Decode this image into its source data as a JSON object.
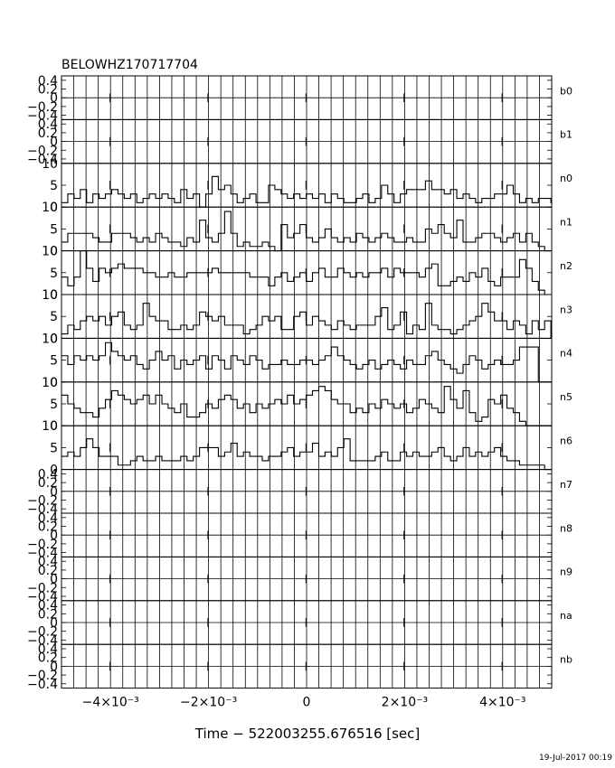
{
  "chart_data": {
    "type": "line",
    "title": "BELOWHZ170717704",
    "xlabel": "Time − 522003255.676516 [sec]",
    "ylabel": "",
    "xlim": [
      -0.005,
      0.005
    ],
    "x_ticks": [
      {
        "value": -0.004,
        "label": "−4×10⁻³"
      },
      {
        "value": -0.002,
        "label": "−2×10⁻³"
      },
      {
        "value": 0,
        "label": "0"
      },
      {
        "value": 0.002,
        "label": "2×10⁻³"
      },
      {
        "value": 0.004,
        "label": "4×10⁻³"
      }
    ],
    "bin_start": -0.005,
    "bin_width": 0.000128,
    "grid": true,
    "panels": [
      {
        "name": "b0",
        "ylim": [
          -0.5,
          0.5
        ],
        "yticks": [
          {
            "v": 0.4,
            "l": "0.4"
          },
          {
            "v": 0.2,
            "l": "0.2"
          },
          {
            "v": 0,
            "l": "0"
          },
          {
            "v": -0.2,
            "l": "−0.2"
          },
          {
            "v": -0.4,
            "l": "−0.4"
          }
        ],
        "values": []
      },
      {
        "name": "b1",
        "ylim": [
          -0.5,
          0.5
        ],
        "yticks": [
          {
            "v": 0.4,
            "l": "0.4"
          },
          {
            "v": 0.2,
            "l": "0.2"
          },
          {
            "v": 0,
            "l": "0"
          },
          {
            "v": -0.2,
            "l": "−0.2"
          },
          {
            "v": -0.4,
            "l": "−0.4"
          }
        ],
        "values": []
      },
      {
        "name": "n0",
        "ylim": [
          0,
          10
        ],
        "yticks": [
          {
            "v": 10,
            "l": "10"
          },
          {
            "v": 5,
            "l": "5"
          },
          {
            "v": 0,
            "l": "0"
          }
        ],
        "values": [
          1,
          3,
          2,
          4,
          1,
          3,
          2,
          3,
          4,
          3,
          2,
          3,
          1,
          2,
          3,
          2,
          3,
          2,
          1,
          4,
          2,
          3,
          0,
          3,
          7,
          4,
          5,
          3,
          1,
          2,
          3,
          1,
          1,
          5,
          4,
          3,
          2,
          3,
          2,
          3,
          2,
          3,
          1,
          3,
          2,
          1,
          1,
          2,
          3,
          1,
          2,
          5,
          3,
          1,
          3,
          4,
          4,
          4,
          6,
          4,
          4,
          3,
          4,
          2,
          3,
          2,
          1,
          2,
          2,
          3,
          3,
          5,
          3,
          1,
          2,
          1,
          2,
          2,
          1
        ]
      },
      {
        "name": "n1",
        "ylim": [
          0,
          10
        ],
        "yticks": [
          {
            "v": 10,
            "l": "10"
          },
          {
            "v": 5,
            "l": "5"
          },
          {
            "v": 0,
            "l": "0"
          }
        ],
        "values": [
          2,
          4,
          4,
          4,
          4,
          3,
          2,
          2,
          4,
          4,
          4,
          3,
          2,
          3,
          2,
          4,
          3,
          2,
          2,
          1,
          3,
          2,
          7,
          3,
          2,
          4,
          9,
          4,
          1,
          2,
          1,
          1,
          2,
          1,
          0,
          6,
          3,
          4,
          6,
          3,
          2,
          3,
          5,
          3,
          2,
          3,
          2,
          4,
          3,
          2,
          3,
          4,
          3,
          2,
          2,
          3,
          2,
          2,
          5,
          4,
          6,
          4,
          3,
          7,
          2,
          2,
          3,
          4,
          4,
          3,
          2,
          3,
          4,
          2,
          4,
          2,
          1,
          0,
          0
        ]
      },
      {
        "name": "n2",
        "ylim": [
          0,
          10
        ],
        "yticks": [
          {
            "v": 10,
            "l": "10"
          },
          {
            "v": 5,
            "l": "5"
          },
          {
            "v": 0,
            "l": "0"
          }
        ],
        "values": [
          4,
          2,
          4,
          10,
          6,
          3,
          6,
          5,
          6,
          7,
          6,
          6,
          6,
          5,
          5,
          4,
          4,
          5,
          4,
          4,
          5,
          5,
          5,
          5,
          6,
          5,
          5,
          5,
          5,
          5,
          4,
          4,
          4,
          2,
          4,
          5,
          3,
          4,
          5,
          3,
          5,
          6,
          4,
          4,
          6,
          5,
          4,
          5,
          4,
          5,
          5,
          6,
          4,
          6,
          5,
          5,
          5,
          4,
          6,
          7,
          2,
          2,
          3,
          4,
          3,
          5,
          4,
          6,
          3,
          2,
          4,
          4,
          4,
          8,
          6,
          3,
          1,
          0,
          0
        ]
      },
      {
        "name": "n3",
        "ylim": [
          0,
          10
        ],
        "yticks": [
          {
            "v": 10,
            "l": "10"
          },
          {
            "v": 5,
            "l": "5"
          },
          {
            "v": 0,
            "l": "0"
          }
        ],
        "values": [
          1,
          3,
          2,
          4,
          5,
          4,
          5,
          3,
          5,
          6,
          3,
          2,
          3,
          8,
          5,
          4,
          4,
          2,
          2,
          3,
          2,
          3,
          6,
          5,
          4,
          5,
          3,
          3,
          3,
          1,
          2,
          3,
          5,
          4,
          5,
          2,
          2,
          5,
          6,
          3,
          5,
          4,
          3,
          2,
          4,
          3,
          2,
          3,
          3,
          3,
          5,
          7,
          2,
          3,
          6,
          1,
          3,
          2,
          8,
          3,
          2,
          2,
          1,
          2,
          3,
          4,
          5,
          8,
          6,
          4,
          4,
          2,
          4,
          3,
          1,
          4,
          2,
          4,
          0
        ]
      },
      {
        "name": "n4",
        "ylim": [
          0,
          10
        ],
        "yticks": [
          {
            "v": 10,
            "l": "10"
          },
          {
            "v": 5,
            "l": "5"
          },
          {
            "v": 0,
            "l": "0"
          }
        ],
        "values": [
          6,
          4,
          6,
          5,
          6,
          5,
          6,
          9,
          7,
          6,
          5,
          6,
          4,
          3,
          5,
          7,
          5,
          6,
          3,
          5,
          4,
          5,
          6,
          3,
          6,
          5,
          3,
          6,
          5,
          4,
          6,
          5,
          3,
          4,
          4,
          5,
          4,
          4,
          5,
          5,
          4,
          5,
          6,
          8,
          6,
          5,
          4,
          3,
          4,
          5,
          3,
          4,
          5,
          4,
          3,
          5,
          4,
          4,
          6,
          7,
          5,
          4,
          3,
          2,
          4,
          6,
          5,
          3,
          4,
          5,
          4,
          4,
          5,
          8,
          8,
          8,
          0,
          0,
          0
        ]
      },
      {
        "name": "n5",
        "ylim": [
          0,
          10
        ],
        "yticks": [
          {
            "v": 10,
            "l": "10"
          },
          {
            "v": 5,
            "l": "5"
          },
          {
            "v": 0,
            "l": "0"
          }
        ],
        "values": [
          7,
          5,
          4,
          3,
          3,
          2,
          4,
          6,
          8,
          7,
          6,
          5,
          6,
          7,
          5,
          7,
          5,
          4,
          3,
          5,
          2,
          2,
          3,
          5,
          4,
          6,
          7,
          6,
          4,
          5,
          3,
          5,
          4,
          5,
          6,
          5,
          7,
          5,
          6,
          7,
          8,
          9,
          8,
          6,
          5,
          5,
          3,
          4,
          3,
          5,
          4,
          6,
          5,
          4,
          5,
          3,
          4,
          6,
          5,
          4,
          3,
          9,
          6,
          4,
          8,
          3,
          1,
          2,
          6,
          5,
          7,
          4,
          3,
          1,
          0,
          0,
          0,
          0,
          0
        ]
      },
      {
        "name": "n6",
        "ylim": [
          0,
          10
        ],
        "yticks": [
          {
            "v": 10,
            "l": "10"
          },
          {
            "v": 5,
            "l": "5"
          },
          {
            "v": 0,
            "l": "0"
          }
        ],
        "values": [
          3,
          4,
          3,
          5,
          7,
          5,
          3,
          3,
          3,
          1,
          1,
          2,
          3,
          2,
          2,
          3,
          2,
          2,
          2,
          3,
          2,
          3,
          5,
          5,
          5,
          3,
          4,
          6,
          3,
          4,
          3,
          3,
          2,
          3,
          3,
          4,
          5,
          3,
          4,
          4,
          6,
          3,
          4,
          3,
          5,
          7,
          2,
          2,
          2,
          2,
          3,
          4,
          2,
          2,
          4,
          3,
          4,
          3,
          3,
          4,
          5,
          3,
          2,
          3,
          5,
          3,
          4,
          3,
          4,
          5,
          3,
          2,
          2,
          1,
          1,
          1,
          1,
          0,
          0
        ]
      },
      {
        "name": "n7",
        "ylim": [
          -0.5,
          0.5
        ],
        "yticks": [
          {
            "v": 0.4,
            "l": "0.4"
          },
          {
            "v": 0.2,
            "l": "0.2"
          },
          {
            "v": 0,
            "l": "0"
          },
          {
            "v": -0.2,
            "l": "−0.2"
          },
          {
            "v": -0.4,
            "l": "−0.4"
          }
        ],
        "values": []
      },
      {
        "name": "n8",
        "ylim": [
          -0.5,
          0.5
        ],
        "yticks": [
          {
            "v": 0.4,
            "l": "0.4"
          },
          {
            "v": 0.2,
            "l": "0.2"
          },
          {
            "v": 0,
            "l": "0"
          },
          {
            "v": -0.2,
            "l": "−0.2"
          },
          {
            "v": -0.4,
            "l": "−0.4"
          }
        ],
        "values": []
      },
      {
        "name": "n9",
        "ylim": [
          -0.5,
          0.5
        ],
        "yticks": [
          {
            "v": 0.4,
            "l": "0.4"
          },
          {
            "v": 0.2,
            "l": "0.2"
          },
          {
            "v": 0,
            "l": "0"
          },
          {
            "v": -0.2,
            "l": "−0.2"
          },
          {
            "v": -0.4,
            "l": "−0.4"
          }
        ],
        "values": []
      },
      {
        "name": "na",
        "ylim": [
          -0.5,
          0.5
        ],
        "yticks": [
          {
            "v": 0.4,
            "l": "0.4"
          },
          {
            "v": 0.2,
            "l": "0.2"
          },
          {
            "v": 0,
            "l": "0"
          },
          {
            "v": -0.2,
            "l": "−0.2"
          },
          {
            "v": -0.4,
            "l": "−0.4"
          }
        ],
        "values": []
      },
      {
        "name": "nb",
        "ylim": [
          -0.5,
          0.5
        ],
        "yticks": [
          {
            "v": 0.4,
            "l": "0.4"
          },
          {
            "v": 0.2,
            "l": "0.2"
          },
          {
            "v": 0,
            "l": "0"
          },
          {
            "v": -0.2,
            "l": "−0.2"
          },
          {
            "v": -0.4,
            "l": "−0.4"
          }
        ],
        "values": []
      }
    ]
  },
  "footer": {
    "timestamp": "19-Jul-2017 00:19"
  }
}
